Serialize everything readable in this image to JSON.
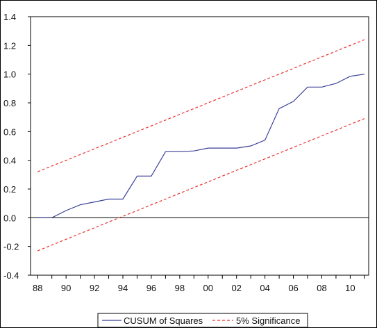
{
  "chart_data": {
    "type": "line",
    "x": [
      1988,
      1989,
      1990,
      1991,
      1992,
      1993,
      1994,
      1995,
      1996,
      1997,
      1998,
      1999,
      2000,
      2001,
      2002,
      2003,
      2004,
      2005,
      2006,
      2007,
      2008,
      2009,
      2010,
      2011
    ],
    "series": [
      {
        "name": "CUSUM of Squares",
        "color": "#3a3f98",
        "style": "solid",
        "values": [
          0.0,
          0.0,
          0.05,
          0.09,
          0.11,
          0.13,
          0.13,
          0.29,
          0.29,
          0.46,
          0.46,
          0.465,
          0.485,
          0.485,
          0.485,
          0.5,
          0.54,
          0.76,
          0.81,
          0.91,
          0.91,
          0.935,
          0.985,
          1.0
        ]
      },
      {
        "name": "5% Significance",
        "color": "#e8322f",
        "style": "dashed",
        "values": [
          0.32,
          0.36,
          0.4,
          0.44,
          0.48,
          0.52,
          0.56,
          0.6,
          0.64,
          0.68,
          0.72,
          0.76,
          0.8,
          0.84,
          0.88,
          0.92,
          0.96,
          1.0,
          1.04,
          1.08,
          1.12,
          1.16,
          1.2,
          1.24
        ]
      },
      {
        "name": "",
        "color": "#e8322f",
        "style": "dashed",
        "values": [
          -0.23,
          -0.19,
          -0.15,
          -0.11,
          -0.07,
          -0.03,
          0.01,
          0.05,
          0.09,
          0.13,
          0.17,
          0.21,
          0.25,
          0.29,
          0.33,
          0.37,
          0.41,
          0.45,
          0.49,
          0.53,
          0.57,
          0.61,
          0.65,
          0.69
        ]
      }
    ],
    "x_tick_labels": [
      "88",
      "90",
      "92",
      "94",
      "96",
      "98",
      "00",
      "02",
      "04",
      "06",
      "08",
      "10"
    ],
    "x_tick_values": [
      1988,
      1990,
      1992,
      1994,
      1996,
      1998,
      2000,
      2002,
      2004,
      2006,
      2008,
      2010
    ],
    "xlim": [
      1987.5,
      2011.3
    ],
    "y_ticks": [
      -0.4,
      -0.2,
      0.0,
      0.2,
      0.4,
      0.6,
      0.8,
      1.0,
      1.2,
      1.4
    ],
    "y_tick_labels": [
      "-0.4",
      "-0.2",
      "0.0",
      "0.2",
      "0.4",
      "0.6",
      "0.8",
      "1.0",
      "1.2",
      "1.4"
    ],
    "ylim": [
      -0.4,
      1.4
    ],
    "zero_line": true,
    "grid": false,
    "legend": {
      "placement": "bottom-center",
      "entries": [
        "CUSUM of Squares",
        "5% Significance"
      ]
    },
    "title": "",
    "xlabel": "",
    "ylabel": ""
  }
}
